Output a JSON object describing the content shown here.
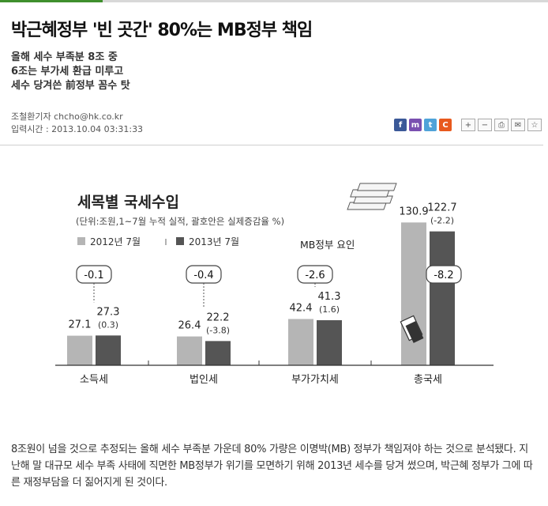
{
  "article": {
    "headline": "박근혜정부 '빈 곳간' 80%는 MB정부 책임",
    "subheads": [
      "올해 세수 부족분 8조 중",
      "6조는 부가세 환급 미루고",
      "세수 당겨쓴 前정부 꼼수 탓"
    ],
    "byline": "조철환기자 chcho@hk.co.kr",
    "timestamp": "입력시간 : 2013.10.04 03:31:33",
    "body": "8조원이 넘을 것으로 추정되는 올해 세수 부족분 가운데 80% 가량은 이명박(MB) 정부가 책임져야 하는 것으로 분석됐다. 지난해 말 대규모 세수 부족 사태에 직면한 MB정부가 위기를 모면하기 위해 2013년 세수를 당겨 썼으며, 박근혜 정부가 그에 따른 재정부담을 더 짊어지게 된 것이다."
  },
  "share": {
    "icons": [
      {
        "name": "facebook-icon",
        "glyph": "f",
        "color": "#3b5998"
      },
      {
        "name": "me2day-icon",
        "glyph": "m",
        "color": "#7a4fb0"
      },
      {
        "name": "twitter-icon",
        "glyph": "t",
        "color": "#4fa3d9"
      },
      {
        "name": "cyworld-icon",
        "glyph": "C",
        "color": "#e8591d"
      }
    ],
    "tools": [
      {
        "name": "font-increase-icon",
        "glyph": "+"
      },
      {
        "name": "font-decrease-icon",
        "glyph": "−"
      },
      {
        "name": "print-icon",
        "glyph": "⎙"
      },
      {
        "name": "email-icon",
        "glyph": "✉"
      },
      {
        "name": "scrap-icon",
        "glyph": "☆"
      }
    ]
  },
  "chart_data": {
    "type": "bar",
    "title": "세목별 국세수입",
    "subtitle": "(단위:조원,1~7월 누적 실적, 괄호안은 실제증감율 %)",
    "categories": [
      "소득세",
      "법인세",
      "부가가치세",
      "총국세"
    ],
    "series": [
      {
        "name": "2012년 7월",
        "color": "#b5b5b5",
        "values": [
          27.1,
          26.4,
          42.4,
          130.9
        ]
      },
      {
        "name": "2013년 7월",
        "color": "#555555",
        "values": [
          27.3,
          22.2,
          41.3,
          122.7
        ]
      }
    ],
    "growth_labels": [
      "(0.3)",
      "(-3.8)",
      "(1.6)",
      "(-2.2)"
    ],
    "differences": [
      "-0.1",
      "-0.4",
      "-2.6",
      "-8.2"
    ],
    "annotation": "MB정부 요인",
    "legend_placement": "top-left"
  }
}
